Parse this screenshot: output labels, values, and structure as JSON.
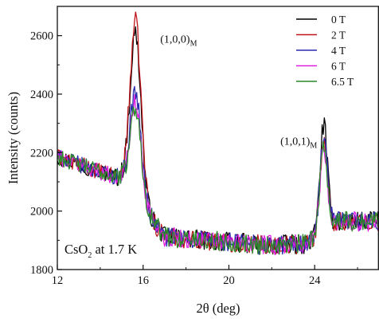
{
  "chart_data": {
    "type": "line",
    "xlabel": "2θ (deg)",
    "ylabel": "Intensity (counts)",
    "xlim": [
      12,
      27
    ],
    "ylim": [
      1800,
      2700
    ],
    "xticks": [
      12,
      16,
      20,
      24
    ],
    "yticks": [
      1800,
      2000,
      2200,
      2400,
      2600
    ],
    "grid": false,
    "legend_placement": "top-right",
    "inset_label": {
      "main": "CsO",
      "sub": "2",
      "rest": " at 1.7 K"
    },
    "annotations": [
      {
        "main": "(1,0,0)",
        "sub": "M",
        "x": 16.8,
        "y": 2590
      },
      {
        "main": "(1,0,1)",
        "sub": "M",
        "x": 22.4,
        "y": 2240
      }
    ],
    "series": [
      {
        "name": "0 T",
        "color": "#000000",
        "peak1": 2650,
        "peak2": 2315
      },
      {
        "name": "2 T",
        "color": "#c0141b",
        "peak1": 2690,
        "peak2": 2260
      },
      {
        "name": "4 T",
        "color": "#2a2ab0",
        "peak1": 2450,
        "peak2": 2270
      },
      {
        "name": "6 T",
        "color": "#e020e0",
        "peak1": 2410,
        "peak2": 2235
      },
      {
        "name": "6.5 T",
        "color": "#2a8a2a",
        "peak1": 2395,
        "peak2": 2250
      }
    ]
  }
}
